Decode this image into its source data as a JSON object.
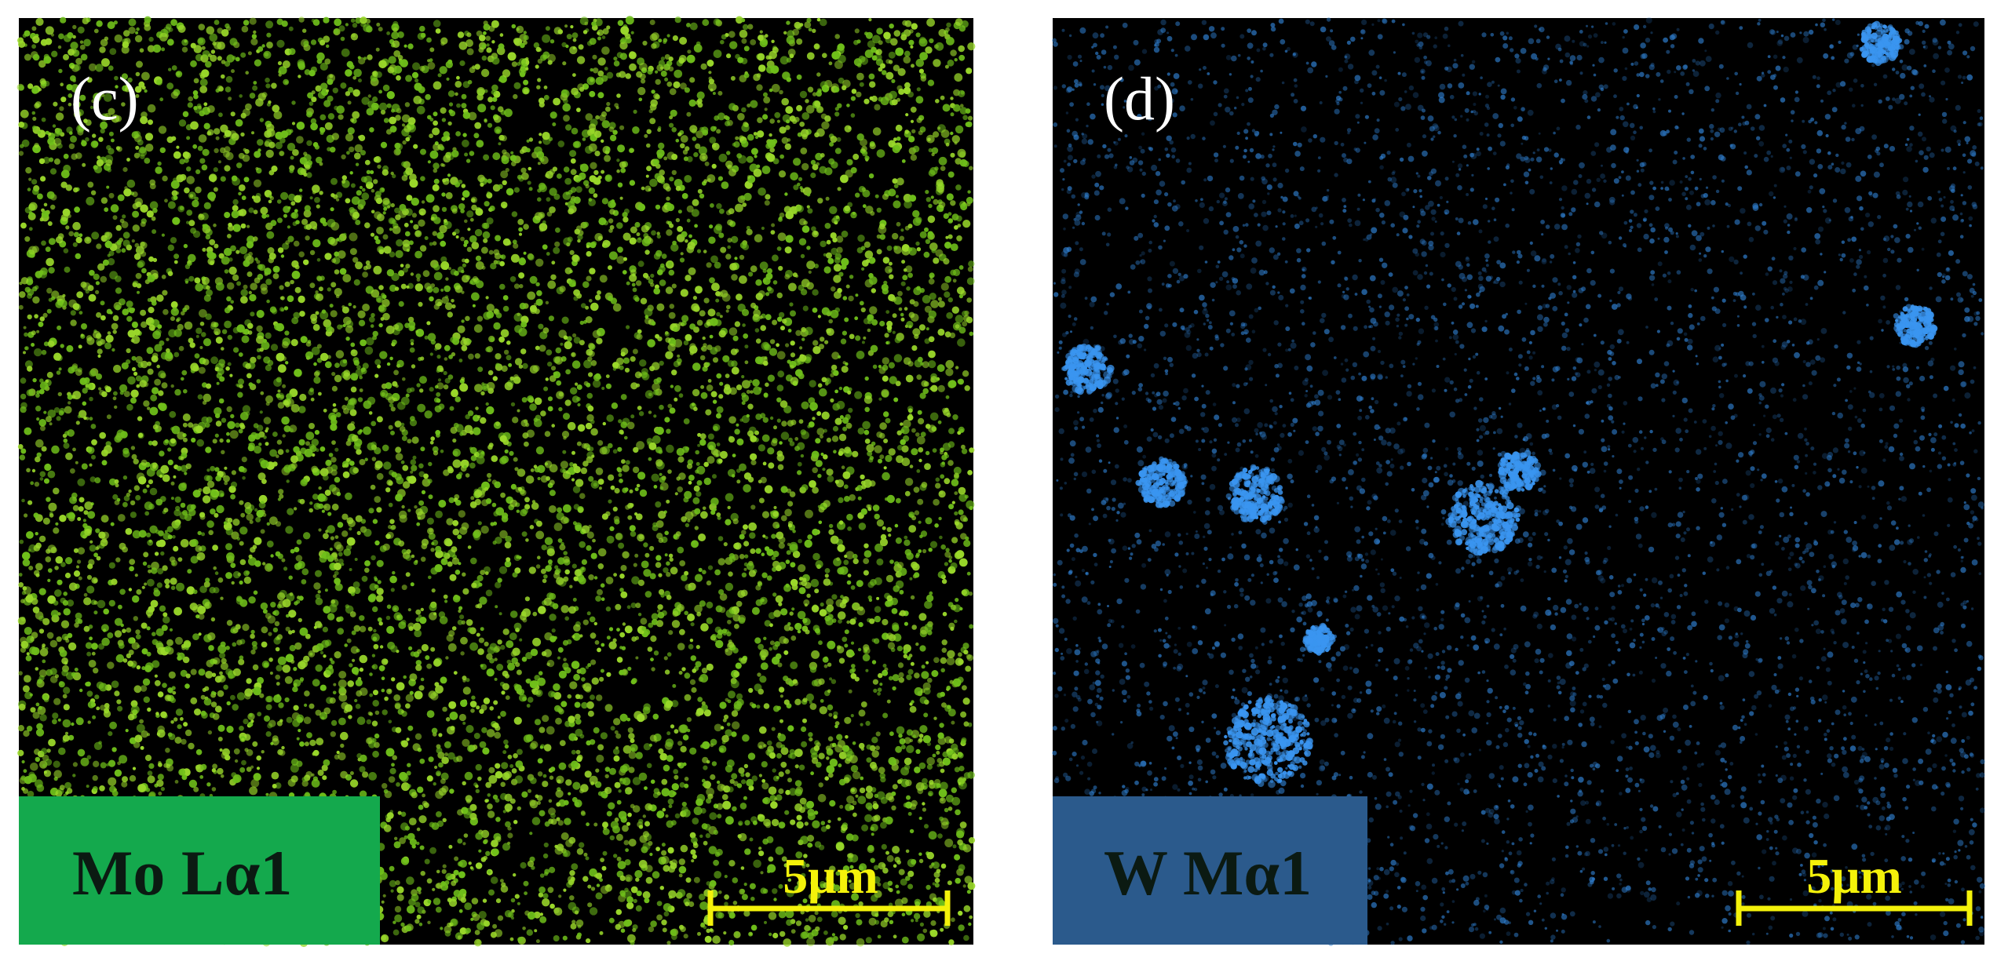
{
  "panels": [
    {
      "label": "(c)",
      "element": "Mo Lα1",
      "scale_bar": "5μm"
    },
    {
      "label": "(d)",
      "element": "W Mα1",
      "scale_bar": "5μm"
    }
  ]
}
